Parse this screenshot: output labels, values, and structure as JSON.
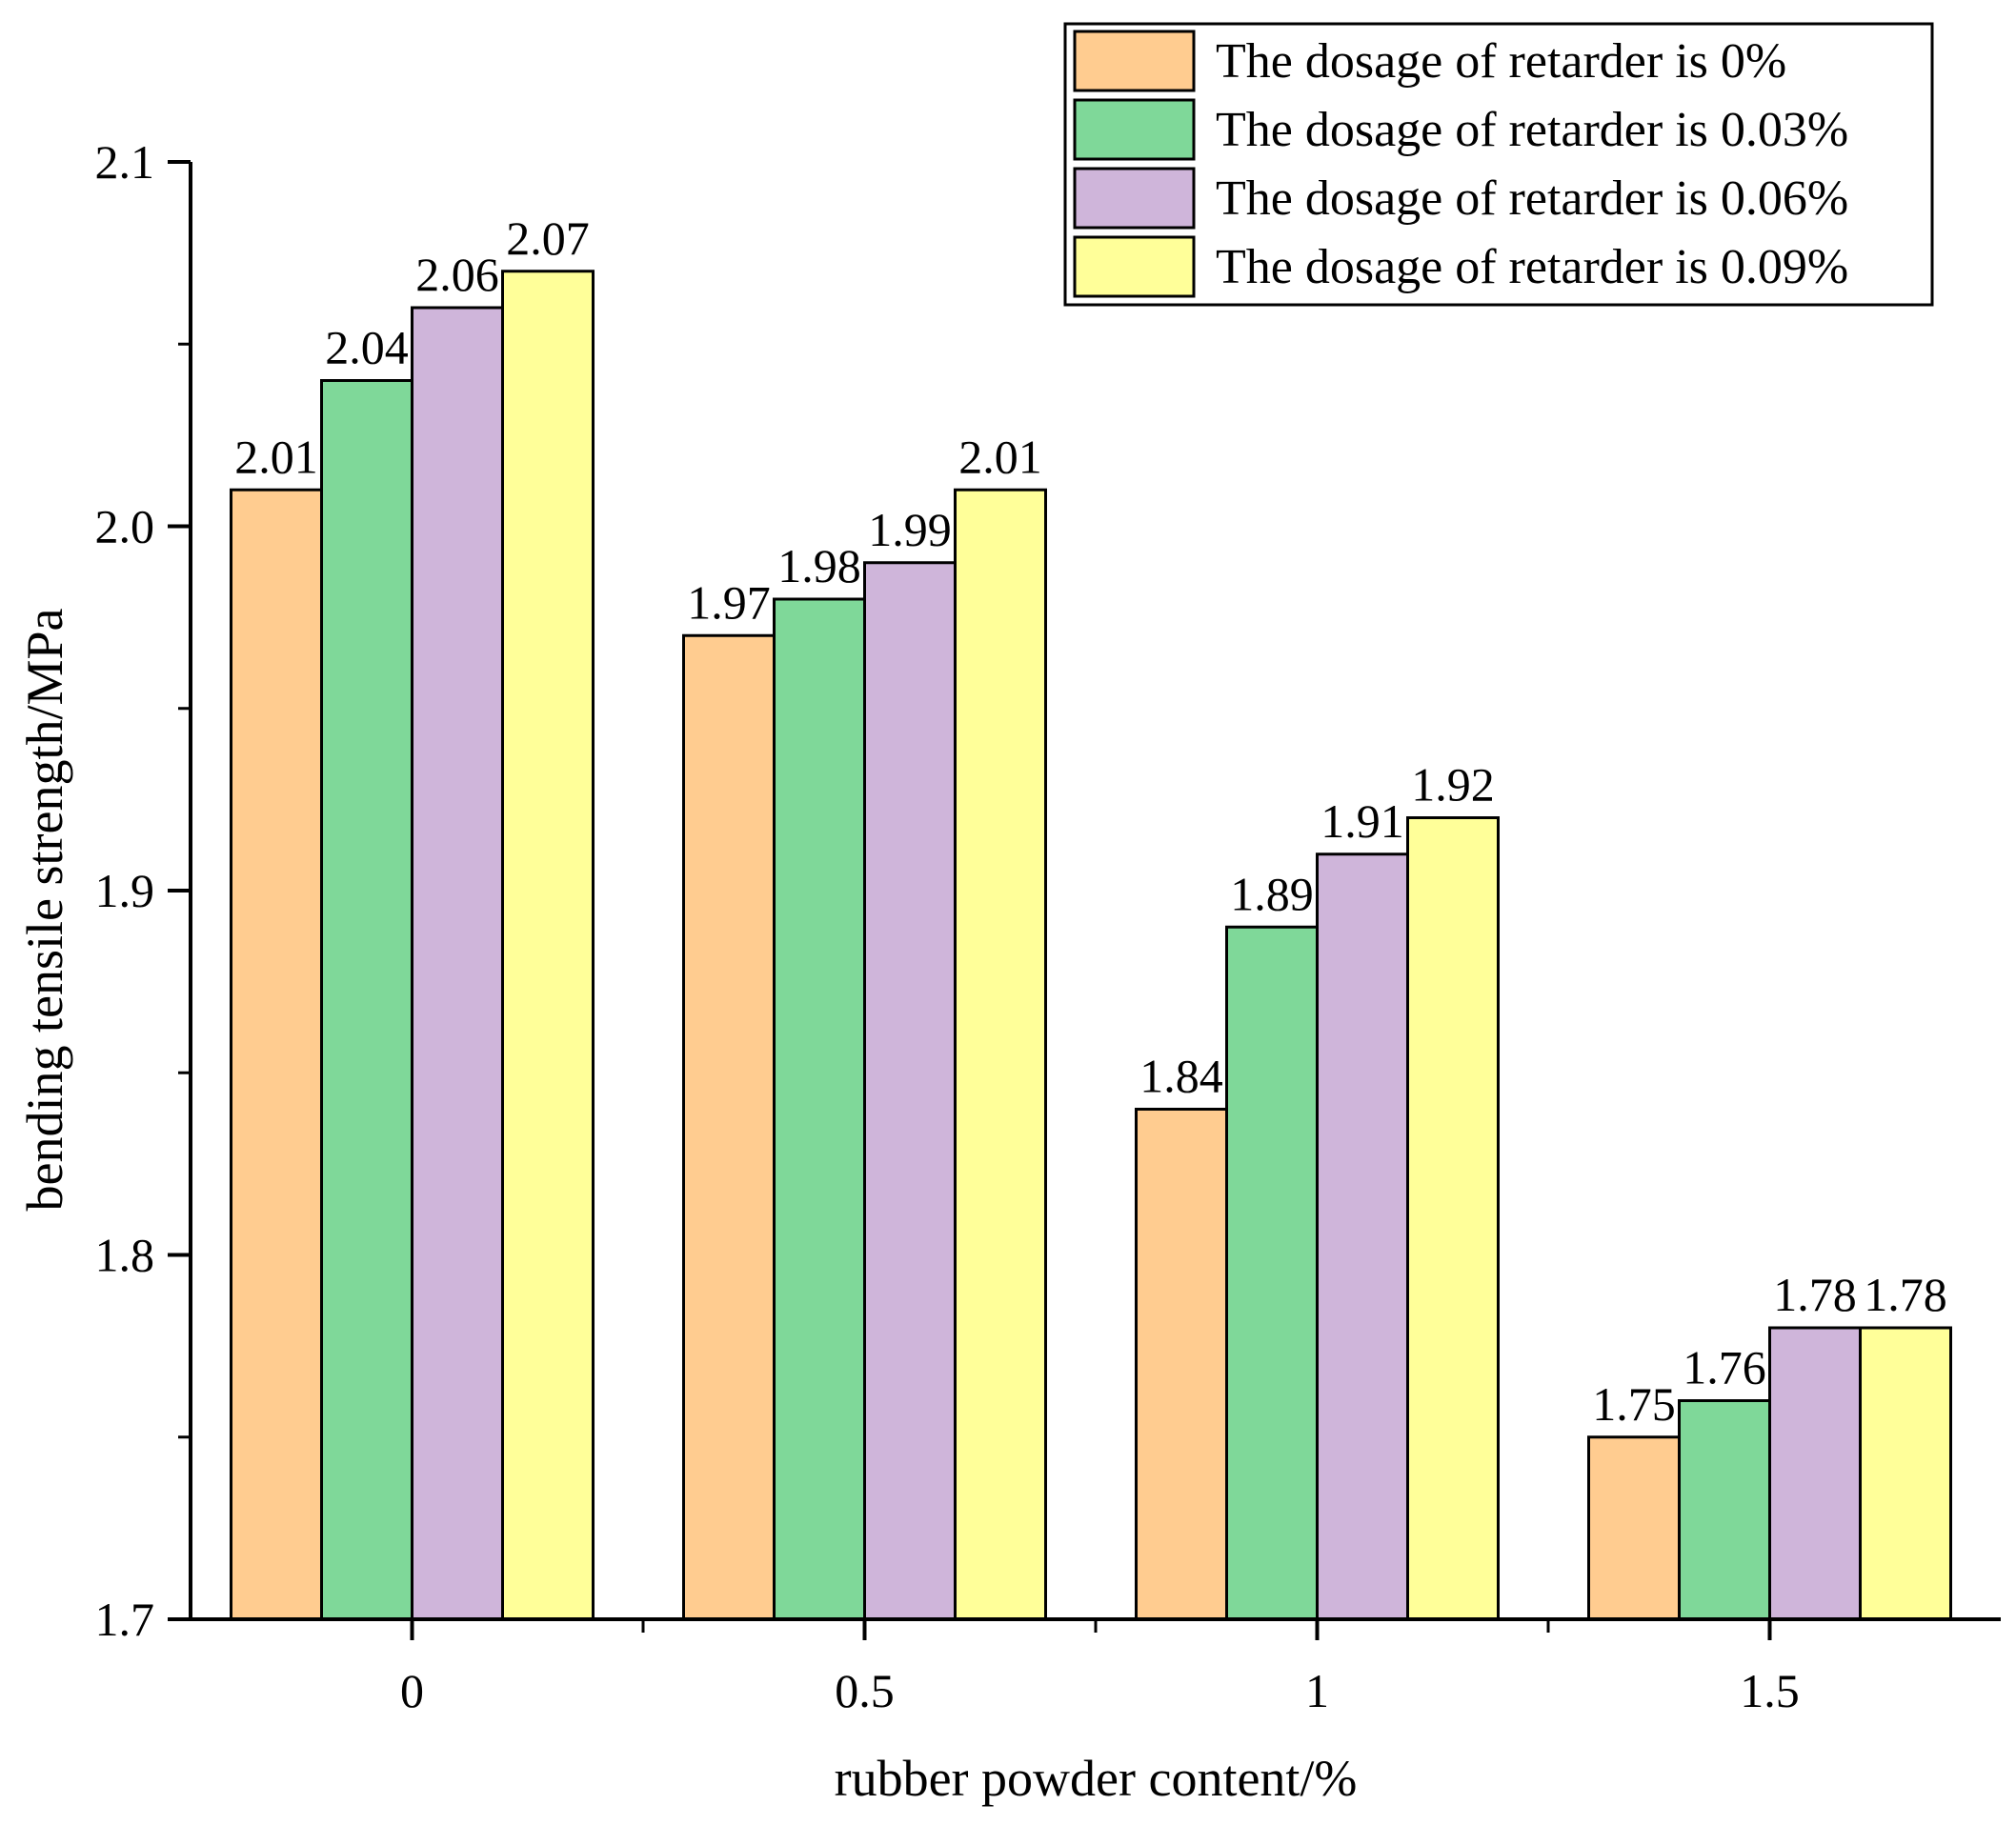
{
  "chart_data": {
    "type": "bar",
    "title": "",
    "xlabel": "rubber powder content/%",
    "ylabel": "bending tensile strength/MPa",
    "categories": [
      "0",
      "0.5",
      "1",
      "1.5"
    ],
    "ylim": [
      1.7,
      2.1
    ],
    "y_ticks": [
      {
        "value": 1.7,
        "label": "1.7"
      },
      {
        "value": 1.8,
        "label": "1.8"
      },
      {
        "value": 1.9,
        "label": "1.9"
      },
      {
        "value": 2.0,
        "label": "2.0"
      },
      {
        "value": 2.1,
        "label": "2.1"
      }
    ],
    "y_minor_ticks": [
      1.75,
      1.85,
      1.95,
      2.05
    ],
    "grid": false,
    "legend_position": "top-right",
    "series": [
      {
        "name": "The dosage of retarder is 0%",
        "color": "#FFCC90",
        "values": [
          2.01,
          1.97,
          1.84,
          1.75
        ],
        "labels": [
          "2.01",
          "1.97",
          "1.84",
          "1.75"
        ]
      },
      {
        "name": "The dosage of retarder is 0.03%",
        "color": "#7FD899",
        "values": [
          2.04,
          1.98,
          1.89,
          1.76
        ],
        "labels": [
          "2.04",
          "1.98",
          "1.89",
          "1.76"
        ]
      },
      {
        "name": "The dosage of retarder is 0.06%",
        "color": "#CFB5DA",
        "values": [
          2.06,
          1.99,
          1.91,
          1.78
        ],
        "labels": [
          "2.06",
          "1.99",
          "1.91",
          "1.78"
        ]
      },
      {
        "name": "The dosage of retarder is 0.09%",
        "color": "#FFFF99",
        "values": [
          2.07,
          2.01,
          1.92,
          1.78
        ],
        "labels": [
          "2.07",
          "2.01",
          "1.92",
          "1.78"
        ]
      }
    ]
  }
}
